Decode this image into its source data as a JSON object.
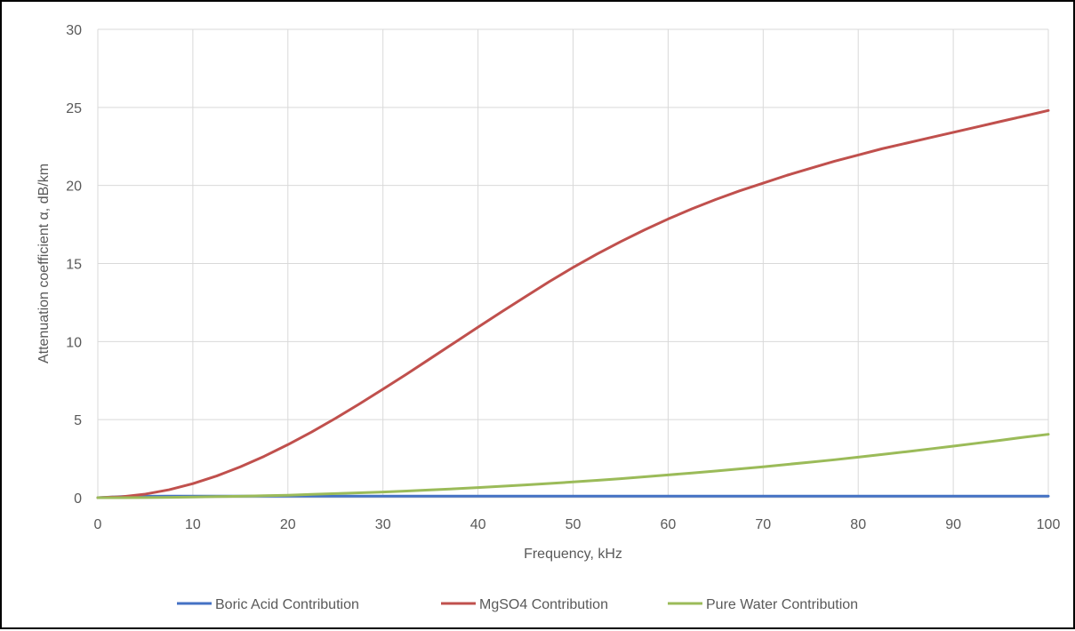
{
  "chart_data": {
    "type": "line",
    "title": "",
    "xlabel": "Frequency, kHz",
    "ylabel": "Attenuation coefficient α, dB/km",
    "xlim": [
      0,
      100
    ],
    "ylim": [
      0,
      30
    ],
    "x_ticks": [
      "0",
      "10",
      "20",
      "30",
      "40",
      "50",
      "60",
      "70",
      "80",
      "90",
      "100"
    ],
    "y_ticks": [
      "0",
      "5",
      "10",
      "15",
      "20",
      "25",
      "30"
    ],
    "grid": true,
    "legend_position": "bottom",
    "x": [
      0,
      2.5,
      5,
      7.5,
      10,
      12.5,
      15,
      17.5,
      20,
      22.5,
      25,
      27.5,
      30,
      32.5,
      35,
      37.5,
      40,
      42.5,
      45,
      47.5,
      50,
      52.5,
      55,
      57.5,
      60,
      62.5,
      65,
      67.5,
      70,
      72.5,
      75,
      77.5,
      80,
      82.5,
      85,
      87.5,
      90,
      92.5,
      95,
      97.5,
      100
    ],
    "series": [
      {
        "name": "Boric Acid Contribution",
        "color": "#4472C4",
        "values": [
          0,
          0.07,
          0.09,
          0.1,
          0.1,
          0.1,
          0.1,
          0.1,
          0.1,
          0.1,
          0.1,
          0.1,
          0.1,
          0.1,
          0.1,
          0.1,
          0.1,
          0.1,
          0.1,
          0.1,
          0.1,
          0.1,
          0.1,
          0.1,
          0.1,
          0.1,
          0.1,
          0.1,
          0.1,
          0.1,
          0.1,
          0.1,
          0.1,
          0.1,
          0.1,
          0.1,
          0.1,
          0.1,
          0.1,
          0.1,
          0.1
        ]
      },
      {
        "name": "MgSO4 Contribution",
        "color": "#C0504D",
        "values": [
          0,
          0.06,
          0.23,
          0.51,
          0.9,
          1.39,
          1.98,
          2.65,
          3.4,
          4.21,
          5.08,
          6.0,
          6.95,
          7.92,
          8.92,
          9.92,
          10.92,
          11.91,
          12.88,
          13.84,
          14.75,
          15.6,
          16.4,
          17.15,
          17.85,
          18.5,
          19.1,
          19.65,
          20.15,
          20.65,
          21.1,
          21.55,
          21.95,
          22.35,
          22.7,
          23.05,
          23.4,
          23.75,
          24.1,
          24.45,
          24.8
        ]
      },
      {
        "name": "Pure Water Contribution",
        "color": "#9BBB59",
        "values": [
          0,
          0.0,
          0.01,
          0.02,
          0.04,
          0.07,
          0.09,
          0.13,
          0.16,
          0.21,
          0.26,
          0.31,
          0.36,
          0.43,
          0.5,
          0.57,
          0.65,
          0.73,
          0.82,
          0.91,
          1.01,
          1.11,
          1.22,
          1.34,
          1.46,
          1.58,
          1.71,
          1.84,
          1.98,
          2.13,
          2.28,
          2.43,
          2.6,
          2.77,
          2.94,
          3.12,
          3.3,
          3.49,
          3.68,
          3.88,
          4.06
        ]
      }
    ]
  }
}
